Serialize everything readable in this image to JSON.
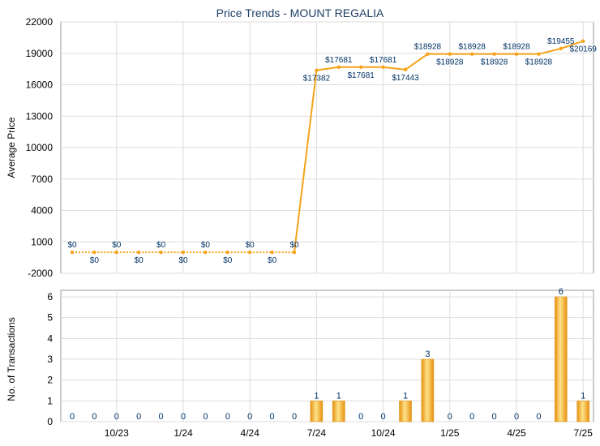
{
  "chart_data": [
    {
      "type": "line",
      "title": "Price Trends - MOUNT REGALIA",
      "xlabel": "",
      "ylabel": "Average Price",
      "ylim": [
        -2000,
        22000
      ],
      "y_ticks": [
        -2000,
        1000,
        4000,
        7000,
        10000,
        13000,
        16000,
        19000,
        22000
      ],
      "grid": true,
      "colors": {
        "line": "#f5a31a",
        "label": "#003366",
        "grid": "#dddddd"
      },
      "x_tick_labels": [
        "10/23",
        "1/24",
        "4/24",
        "7/24",
        "10/24",
        "1/25",
        "4/25",
        "7/25"
      ],
      "points": [
        {
          "x": "8/23",
          "y": 0,
          "label": "$0"
        },
        {
          "x": "9/23",
          "y": 0,
          "label": "$0"
        },
        {
          "x": "10/23",
          "y": 0,
          "label": "$0"
        },
        {
          "x": "11/23",
          "y": 0,
          "label": "$0"
        },
        {
          "x": "12/23",
          "y": 0,
          "label": "$0"
        },
        {
          "x": "1/24",
          "y": 0,
          "label": "$0"
        },
        {
          "x": "2/24",
          "y": 0,
          "label": "$0"
        },
        {
          "x": "3/24",
          "y": 0,
          "label": "$0"
        },
        {
          "x": "4/24",
          "y": 0,
          "label": "$0"
        },
        {
          "x": "5/24",
          "y": 0,
          "label": "$0"
        },
        {
          "x": "6/24",
          "y": 0,
          "label": "$0"
        },
        {
          "x": "7/24",
          "y": 17382,
          "label": "$17382"
        },
        {
          "x": "8/24",
          "y": 17681,
          "label": "$17681"
        },
        {
          "x": "9/24",
          "y": 17681,
          "label": "$17681"
        },
        {
          "x": "10/24",
          "y": 17681,
          "label": "$17681"
        },
        {
          "x": "11/24",
          "y": 17443,
          "label": "$17443"
        },
        {
          "x": "12/24",
          "y": 18928,
          "label": "$18928"
        },
        {
          "x": "1/25",
          "y": 18928,
          "label": "$18928"
        },
        {
          "x": "2/25",
          "y": 18928,
          "label": "$18928"
        },
        {
          "x": "3/25",
          "y": 18928,
          "label": "$18928"
        },
        {
          "x": "4/25",
          "y": 18928,
          "label": "$18928"
        },
        {
          "x": "5/25",
          "y": 18928,
          "label": "$18928"
        },
        {
          "x": "6/25",
          "y": 19455,
          "label": "$19455"
        },
        {
          "x": "7/25",
          "y": 20169,
          "label": "$20169"
        }
      ]
    },
    {
      "type": "bar",
      "title": "",
      "xlabel": "",
      "ylabel": "No. of Transactions",
      "ylim": [
        0,
        6
      ],
      "y_ticks": [
        0,
        1,
        2,
        3,
        4,
        5,
        6
      ],
      "grid": true,
      "colors": {
        "bar": "#f5a31a",
        "label": "#003366"
      },
      "x_tick_labels": [
        "10/23",
        "1/24",
        "4/24",
        "7/24",
        "10/24",
        "1/25",
        "4/25",
        "7/25"
      ],
      "categories": [
        "8/23",
        "9/23",
        "10/23",
        "11/23",
        "12/23",
        "1/24",
        "2/24",
        "3/24",
        "4/24",
        "5/24",
        "6/24",
        "7/24",
        "8/24",
        "9/24",
        "10/24",
        "11/24",
        "12/24",
        "1/25",
        "2/25",
        "3/25",
        "4/25",
        "5/25",
        "6/25",
        "7/25"
      ],
      "values": [
        0,
        0,
        0,
        0,
        0,
        0,
        0,
        0,
        0,
        0,
        0,
        1,
        1,
        0,
        0,
        1,
        3,
        0,
        0,
        0,
        0,
        0,
        6,
        1
      ]
    }
  ]
}
